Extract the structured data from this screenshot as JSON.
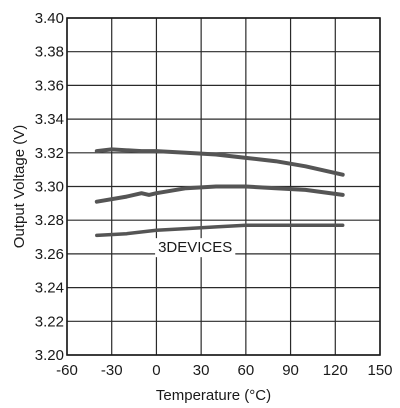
{
  "chart_data": {
    "type": "line",
    "title": "",
    "xlabel": "Temperature (°C)",
    "ylabel": "Output Voltage (V)",
    "xlim": [
      -60,
      150
    ],
    "ylim": [
      3.2,
      3.4
    ],
    "x_ticks": [
      -60,
      -30,
      0,
      30,
      60,
      90,
      120,
      150
    ],
    "x_tick_labels": [
      "-60",
      "-30",
      "0",
      "30",
      "60",
      "90",
      "120",
      "150"
    ],
    "y_ticks": [
      3.2,
      3.22,
      3.24,
      3.26,
      3.28,
      3.3,
      3.32,
      3.34,
      3.36,
      3.38,
      3.4
    ],
    "y_tick_labels": [
      "3.20",
      "3.22",
      "3.24",
      "3.26",
      "3.28",
      "3.30",
      "3.32",
      "3.34",
      "3.36",
      "3.38",
      "3.40"
    ],
    "grid": true,
    "annotation": "3DEVICES",
    "line_color": "#555555",
    "series": [
      {
        "x": [
          -40,
          -30,
          -10,
          0,
          20,
          40,
          60,
          80,
          100,
          125
        ],
        "y": [
          3.321,
          3.322,
          3.321,
          3.321,
          3.32,
          3.319,
          3.317,
          3.315,
          3.312,
          3.307
        ]
      },
      {
        "x": [
          -40,
          -20,
          -10,
          -5,
          0,
          20,
          40,
          60,
          80,
          100,
          125
        ],
        "y": [
          3.291,
          3.294,
          3.296,
          3.295,
          3.296,
          3.299,
          3.3,
          3.3,
          3.299,
          3.298,
          3.295
        ]
      },
      {
        "x": [
          -40,
          -20,
          0,
          20,
          40,
          60,
          80,
          100,
          125
        ],
        "y": [
          3.271,
          3.272,
          3.274,
          3.275,
          3.276,
          3.277,
          3.277,
          3.277,
          3.277
        ]
      }
    ]
  }
}
